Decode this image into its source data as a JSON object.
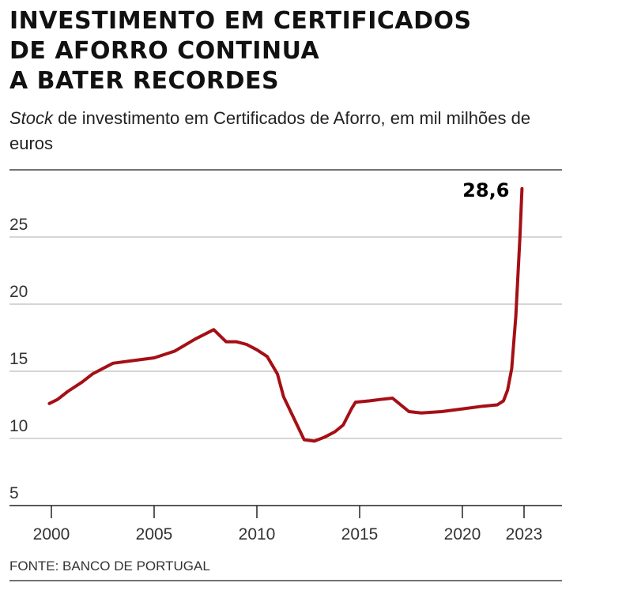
{
  "title_lines": [
    "INVESTIMENTO EM CERTIFICADOS",
    "DE AFORRO CONTINUA",
    "A BATER RECORDES"
  ],
  "subtitle_italic": "Stock",
  "subtitle_rest": " de investimento em Certificados de Aforro, em mil milhões de euros",
  "source": "FONTE: BANCO DE PORTUGAL",
  "chart_data": {
    "type": "line",
    "title": "INVESTIMENTO EM CERTIFICADOS DE AFORRO CONTINUA A BATER RECORDES",
    "xlabel": "",
    "ylabel": "mil milhões de euros",
    "xlim": [
      1998.8,
      2024.8
    ],
    "ylim": [
      5,
      30
    ],
    "yticks": [
      5,
      10,
      15,
      20,
      25
    ],
    "ytick_labels": [
      "5",
      "10",
      "15",
      "20",
      "25"
    ],
    "xticks": [
      2000,
      2005,
      2010,
      2015,
      2020,
      2023
    ],
    "xtick_labels": [
      "2000",
      "2005",
      "2010",
      "2015",
      "2020",
      "2023"
    ],
    "grid": true,
    "color": "#a50f15",
    "annotation": {
      "label": "28,6",
      "x": 2022.9,
      "y": 28.6
    },
    "series": [
      {
        "name": "Stock",
        "x": [
          1999.9,
          2000.3,
          2000.8,
          2001.5,
          2002,
          2003,
          2004,
          2005,
          2006,
          2007,
          2007.9,
          2008.5,
          2009,
          2009.5,
          2010,
          2010.5,
          2011,
          2011.3,
          2011.8,
          2012.3,
          2012.8,
          2013.3,
          2013.8,
          2014.2,
          2014.6,
          2014.8,
          2015.5,
          2016,
          2016.6,
          2017,
          2017.4,
          2018,
          2019,
          2020,
          2021,
          2021.7,
          2022,
          2022.2,
          2022.4,
          2022.6,
          2022.8,
          2022.9
        ],
        "y": [
          12.6,
          12.9,
          13.5,
          14.2,
          14.8,
          15.6,
          15.8,
          16.0,
          16.5,
          17.4,
          18.1,
          17.2,
          17.2,
          17.0,
          16.6,
          16.1,
          14.8,
          13.1,
          11.5,
          9.9,
          9.8,
          10.1,
          10.5,
          11.0,
          12.2,
          12.7,
          12.8,
          12.9,
          13.0,
          12.5,
          12.0,
          11.9,
          12.0,
          12.2,
          12.4,
          12.5,
          12.8,
          13.6,
          15.2,
          19.1,
          25.0,
          28.6
        ]
      }
    ]
  }
}
